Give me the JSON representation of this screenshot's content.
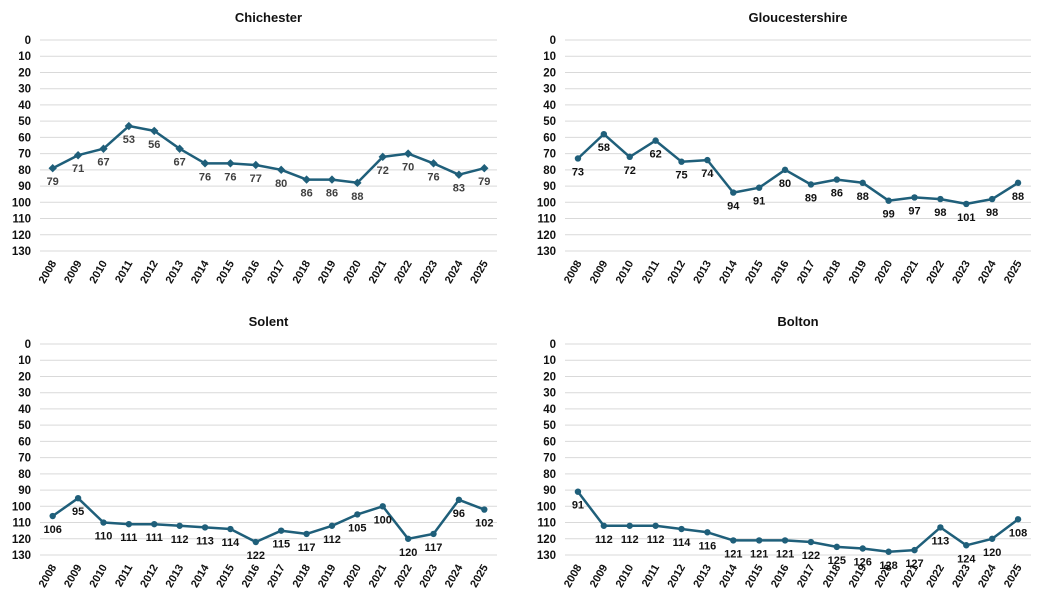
{
  "colors": {
    "series": "#1f5f7a",
    "label_dark": "#111111",
    "label_gray": "#404040",
    "grid": "#d9d9d9"
  },
  "chart_data": [
    {
      "type": "line",
      "title": "Chichester",
      "marker": "diamond",
      "label_color": "gray",
      "y_reversed": true,
      "ylim": [
        0,
        130
      ],
      "yticks": [
        0,
        10,
        20,
        30,
        40,
        50,
        60,
        70,
        80,
        90,
        100,
        110,
        120,
        130
      ],
      "categories": [
        "2008",
        "2009",
        "2010",
        "2011",
        "2012",
        "2013",
        "2014",
        "2015",
        "2016",
        "2017",
        "2018",
        "2019",
        "2020",
        "2021",
        "2022",
        "2023",
        "2024",
        "2025"
      ],
      "values": [
        79,
        71,
        67,
        53,
        56,
        67,
        76,
        76,
        77,
        80,
        86,
        86,
        88,
        72,
        70,
        76,
        83,
        79
      ],
      "data_labels": [
        "79",
        "71",
        "67",
        "53",
        "56",
        "67",
        "76",
        "76",
        "77",
        "80",
        "86",
        "86",
        "88",
        "72",
        "70",
        "76",
        "83",
        "79"
      ]
    },
    {
      "type": "line",
      "title": "Gloucestershire",
      "marker": "circle",
      "label_color": "dark",
      "y_reversed": true,
      "ylim": [
        0,
        130
      ],
      "yticks": [
        0,
        10,
        20,
        30,
        40,
        50,
        60,
        70,
        80,
        90,
        100,
        110,
        120,
        130
      ],
      "categories": [
        "2008",
        "2009",
        "2010",
        "2011",
        "2012",
        "2013",
        "2014",
        "2015",
        "2016",
        "2017",
        "2018",
        "2019",
        "2020",
        "2021",
        "2022",
        "2023",
        "2024",
        "2025"
      ],
      "values": [
        73,
        58,
        72,
        62,
        75,
        74,
        94,
        91,
        80,
        89,
        86,
        88,
        99,
        97,
        98,
        101,
        98,
        88
      ],
      "data_labels": [
        "73",
        "58",
        "72",
        "62",
        "75",
        "74",
        "94",
        "91",
        "80",
        "89",
        "86",
        "88",
        "99",
        "97",
        "98",
        "101",
        "98",
        "88"
      ]
    },
    {
      "type": "line",
      "title": "Solent",
      "marker": "circle",
      "label_color": "dark",
      "y_reversed": true,
      "ylim": [
        0,
        130
      ],
      "yticks": [
        0,
        10,
        20,
        30,
        40,
        50,
        60,
        70,
        80,
        90,
        100,
        110,
        120,
        130
      ],
      "categories": [
        "2008",
        "2009",
        "2010",
        "2011",
        "2012",
        "2013",
        "2014",
        "2015",
        "2016",
        "2017",
        "2018",
        "2019",
        "2020",
        "2021",
        "2022",
        "2023",
        "2024",
        "2025"
      ],
      "values": [
        106,
        95,
        110,
        111,
        111,
        112,
        113,
        114,
        122,
        115,
        117,
        112,
        105,
        100,
        120,
        117,
        96,
        102
      ],
      "data_labels": [
        "106",
        "95",
        "110",
        "111",
        "111",
        "112",
        "113",
        "114",
        "122",
        "115",
        "117",
        "112",
        "105",
        "100",
        "120",
        "117",
        "96",
        "102"
      ]
    },
    {
      "type": "line",
      "title": "Bolton",
      "marker": "circle",
      "label_color": "dark",
      "y_reversed": true,
      "ylim": [
        0,
        130
      ],
      "yticks": [
        0,
        10,
        20,
        30,
        40,
        50,
        60,
        70,
        80,
        90,
        100,
        110,
        120,
        130
      ],
      "categories": [
        "2008",
        "2009",
        "2010",
        "2011",
        "2012",
        "2013",
        "2014",
        "2015",
        "2016",
        "2017",
        "2018",
        "2019",
        "2020",
        "2021",
        "2022",
        "2023",
        "2024",
        "2025"
      ],
      "values": [
        91,
        112,
        112,
        112,
        114,
        116,
        121,
        121,
        121,
        122,
        125,
        126,
        128,
        127,
        113,
        124,
        120,
        108
      ],
      "data_labels": [
        "91",
        "112",
        "112",
        "112",
        "114",
        "116",
        "121",
        "121",
        "121",
        "122",
        "125",
        "126",
        "128",
        "127",
        "113",
        "124",
        "120",
        "108"
      ]
    }
  ]
}
